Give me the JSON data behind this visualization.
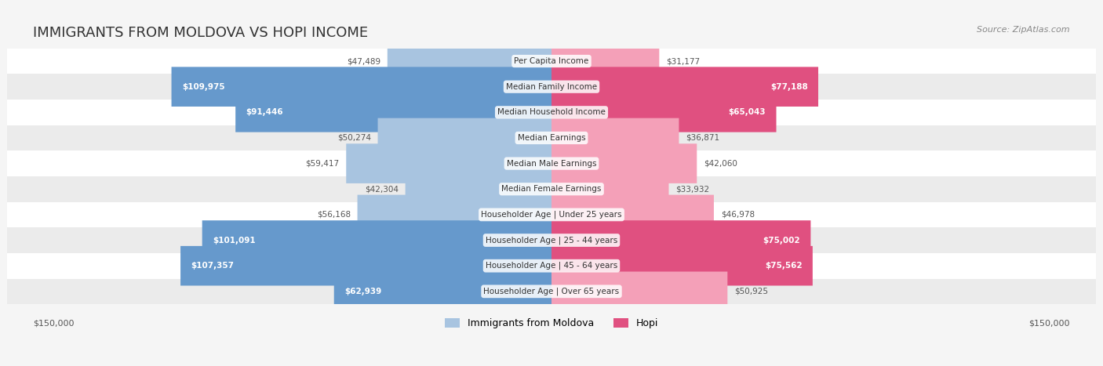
{
  "title": "IMMIGRANTS FROM MOLDOVA VS HOPI INCOME",
  "source": "Source: ZipAtlas.com",
  "categories": [
    "Per Capita Income",
    "Median Family Income",
    "Median Household Income",
    "Median Earnings",
    "Median Male Earnings",
    "Median Female Earnings",
    "Householder Age | Under 25 years",
    "Householder Age | 25 - 44 years",
    "Householder Age | 45 - 64 years",
    "Householder Age | Over 65 years"
  ],
  "moldova_values": [
    47489,
    109975,
    91446,
    50274,
    59417,
    42304,
    56168,
    101091,
    107357,
    62939
  ],
  "hopi_values": [
    31177,
    77188,
    65043,
    36871,
    42060,
    33932,
    46978,
    75002,
    75562,
    50925
  ],
  "moldova_labels": [
    "$47,489",
    "$109,975",
    "$91,446",
    "$50,274",
    "$59,417",
    "$42,304",
    "$56,168",
    "$101,091",
    "$107,357",
    "$62,939"
  ],
  "hopi_labels": [
    "$31,177",
    "$77,188",
    "$65,043",
    "$36,871",
    "$42,060",
    "$33,932",
    "$46,978",
    "$75,002",
    "$75,562",
    "$50,925"
  ],
  "max_value": 150000,
  "moldova_color_bar": "#a8c4e0",
  "moldova_color_bar_dark": "#6699cc",
  "hopi_color_bar": "#f4a0b8",
  "hopi_color_bar_dark": "#e05080",
  "moldova_label_dark_threshold": 60000,
  "hopi_label_dark_threshold": 60000,
  "background_color": "#f5f5f5",
  "row_bg_light": "#ffffff",
  "row_bg_dark": "#ebebeb",
  "legend_moldova": "Immigrants from Moldova",
  "legend_hopi": "Hopi",
  "axis_label_left": "$150,000",
  "axis_label_right": "$150,000"
}
